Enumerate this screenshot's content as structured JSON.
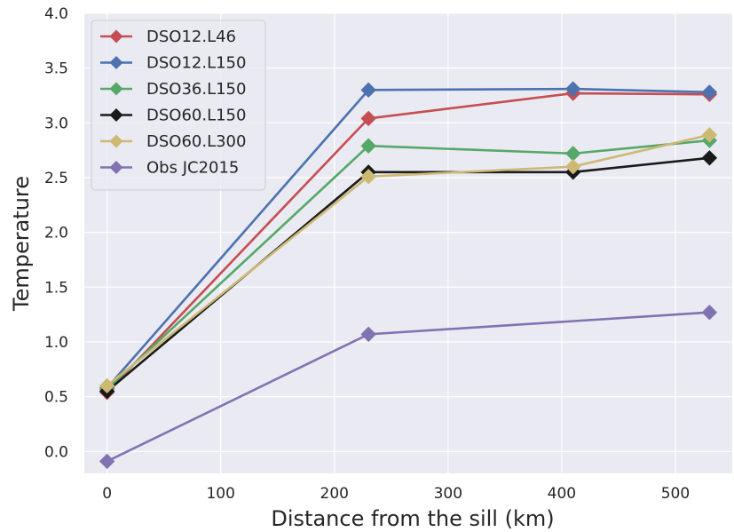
{
  "chart_data": {
    "type": "line",
    "title": "",
    "xlabel": "Distance from the sill (km)",
    "ylabel": "Temperature",
    "xlim": [
      -20,
      550
    ],
    "ylim": [
      -0.2,
      4.0
    ],
    "xticks": [
      0,
      100,
      200,
      300,
      400,
      500
    ],
    "yticks": [
      0.0,
      0.5,
      1.0,
      1.5,
      2.0,
      2.5,
      3.0,
      3.5,
      4.0
    ],
    "xtick_labels": [
      "0",
      "100",
      "200",
      "300",
      "400",
      "500"
    ],
    "ytick_labels": [
      "0.0",
      "0.5",
      "1.0",
      "1.5",
      "2.0",
      "2.5",
      "3.0",
      "3.5",
      "4.0"
    ],
    "grid": true,
    "legend_position": "upper-left",
    "series": [
      {
        "name": "DSO12.L46",
        "color": "#c44e52",
        "marker": "diamond",
        "x": [
          0,
          230,
          410,
          530
        ],
        "y": [
          0.54,
          3.04,
          3.27,
          3.26
        ]
      },
      {
        "name": "DSO12.L150",
        "color": "#4c72b0",
        "marker": "diamond",
        "x": [
          0,
          230,
          410,
          530
        ],
        "y": [
          0.58,
          3.3,
          3.31,
          3.28
        ]
      },
      {
        "name": "DSO36.L150",
        "color": "#55a868",
        "marker": "diamond",
        "x": [
          0,
          230,
          410,
          530
        ],
        "y": [
          0.57,
          2.79,
          2.72,
          2.84
        ]
      },
      {
        "name": "DSO60.L150",
        "color": "#1a1a1a",
        "marker": "diamond",
        "x": [
          0,
          230,
          410,
          530
        ],
        "y": [
          0.55,
          2.55,
          2.55,
          2.68
        ]
      },
      {
        "name": "DSO60.L300",
        "color": "#ccb974",
        "marker": "diamond",
        "x": [
          0,
          230,
          410,
          530
        ],
        "y": [
          0.6,
          2.51,
          2.6,
          2.89
        ]
      },
      {
        "name": "Obs JC2015",
        "color": "#8172b2",
        "marker": "diamond",
        "x": [
          0,
          230,
          530
        ],
        "y": [
          -0.09,
          1.07,
          1.27
        ]
      }
    ]
  }
}
